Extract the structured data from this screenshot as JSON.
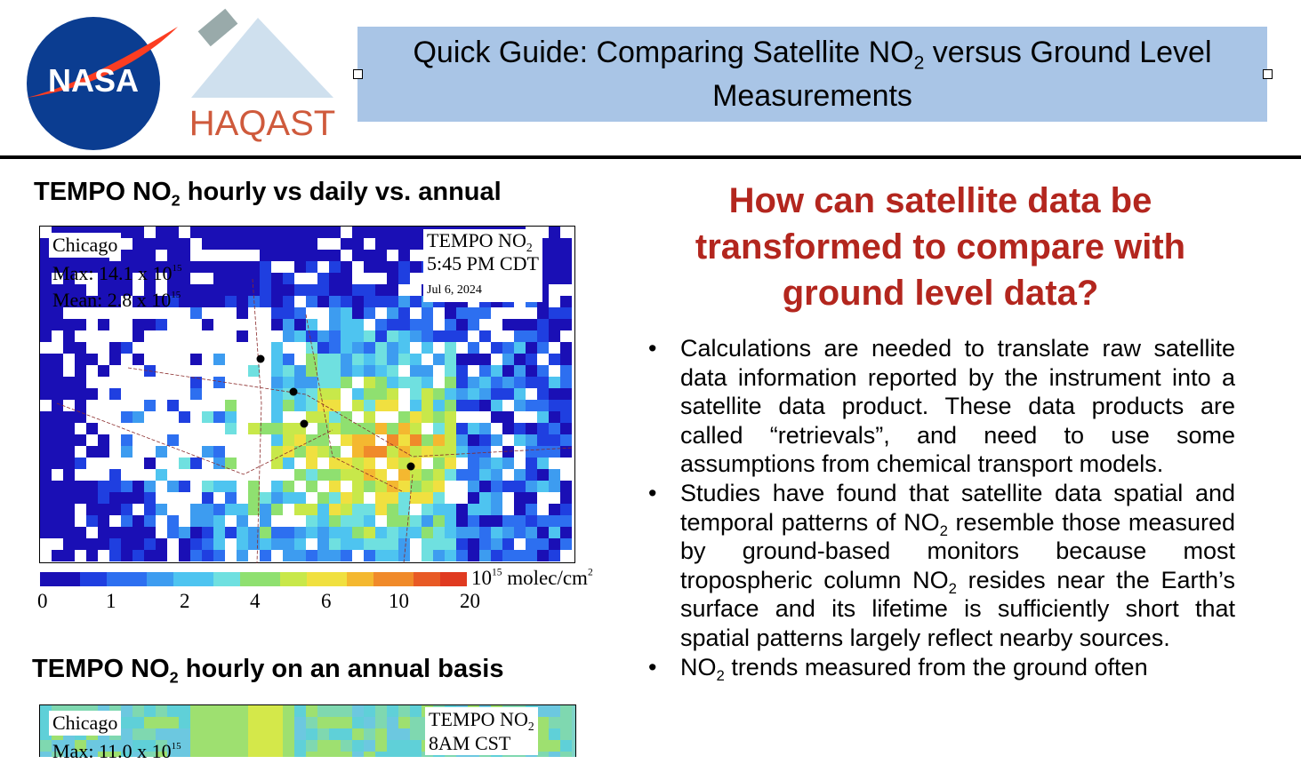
{
  "header": {
    "logo_text": "NASA",
    "haqast": "HAQAST",
    "title": [
      "Quick Guide: Comparing Satellite NO",
      "2",
      " versus Ground Level Measurements"
    ]
  },
  "left": {
    "panels": [
      {
        "heading": [
          "TEMPO NO",
          "2",
          " hourly vs daily vs. annual"
        ],
        "map": {
          "city": "Chicago",
          "max": [
            "Max: 14.1 x 10",
            "15"
          ],
          "mean": [
            "Mean: 2.8 x 10",
            "15"
          ],
          "product": [
            "TEMPO NO",
            "2"
          ],
          "time": "5:45 PM CDT",
          "date": "Jul 6, 2024"
        },
        "colorbar": {
          "ticks": [
            0,
            1,
            2,
            4,
            6,
            10,
            20
          ],
          "unit": [
            "10",
            "15",
            " molec/cm",
            "2"
          ]
        }
      },
      {
        "heading": [
          "TEMPO NO",
          "2",
          " hourly on an annual basis"
        ],
        "map": {
          "city": "Chicago",
          "max": [
            "Max: 11.0 x 10",
            "15"
          ],
          "product": [
            "TEMPO NO",
            "2"
          ],
          "time": "8AM CST"
        }
      }
    ]
  },
  "right": {
    "question": "How can satellite data be transformed to compare with ground level data?",
    "bullets": [
      [
        "Calculations are needed to translate raw satellite data information reported by the instrument into a satellite data product. These data products are called “retrievals”, and need to use some assumptions from chemical transport models."
      ],
      [
        "Studies have found that satellite data spatial and temporal patterns of NO",
        "2",
        " resemble those measured by ground-based monitors because most tropospheric column NO",
        "2",
        " resides near the Earth’s surface and its lifetime is sufficiently short that spatial patterns largely reflect nearby sources."
      ],
      [
        "NO",
        "2",
        " trends measured from the ground often"
      ]
    ]
  }
}
